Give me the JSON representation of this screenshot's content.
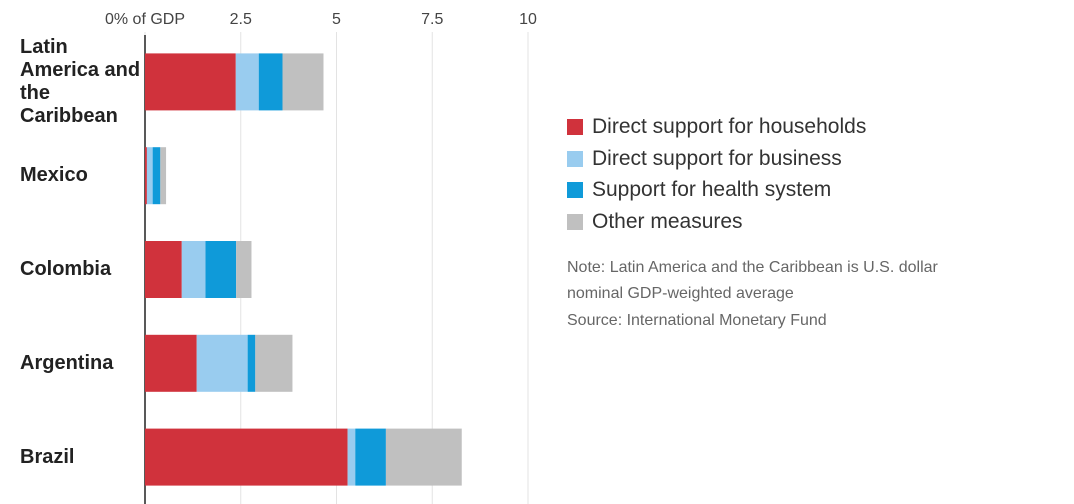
{
  "chart_data": {
    "type": "stacked-bar-horizontal",
    "categories": [
      "Latin America and the Caribbean",
      "Mexico",
      "Colombia",
      "Argentina",
      "Brazil"
    ],
    "series": [
      {
        "name": "Direct support for households",
        "color": "#d0323c",
        "values": [
          2.37,
          0.05,
          0.96,
          1.35,
          5.29
        ]
      },
      {
        "name": "Direct support for business",
        "color": "#99ccef",
        "values": [
          0.6,
          0.15,
          0.62,
          1.33,
          0.2
        ]
      },
      {
        "name": "Support for health system",
        "color": "#0f9ad9",
        "values": [
          0.62,
          0.2,
          0.8,
          0.2,
          0.8
        ]
      },
      {
        "name": "Other measures",
        "color": "#c0c0c0",
        "values": [
          1.07,
          0.15,
          0.4,
          0.97,
          1.98
        ]
      }
    ],
    "xlim": [
      0,
      10
    ],
    "xticks": [
      {
        "value": 0,
        "label": "0% of GDP"
      },
      2.5,
      5,
      7.5,
      10
    ],
    "grid": true,
    "note": "Note: Latin America and the Caribbean is U.S. dollar nominal GDP-weighted average",
    "source": "Source: International Monetary Fund"
  }
}
